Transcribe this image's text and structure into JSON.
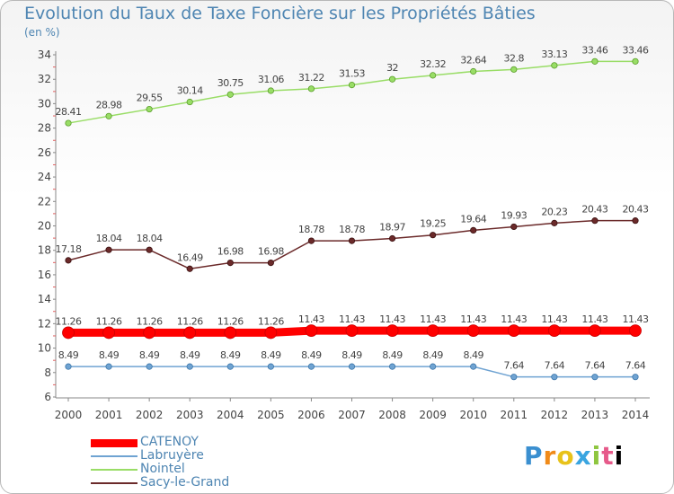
{
  "chart_data": {
    "type": "line",
    "title": "Evolution du Taux de Taxe Foncière sur les Propriétés Bâties",
    "unit_label": "(en %)",
    "x": [
      "2000",
      "2001",
      "2002",
      "2003",
      "2004",
      "2005",
      "2006",
      "2007",
      "2008",
      "2009",
      "2010",
      "2011",
      "2012",
      "2013",
      "2014"
    ],
    "ylim": [
      6,
      34
    ],
    "yticks": [
      6,
      8,
      10,
      12,
      14,
      16,
      18,
      20,
      22,
      24,
      26,
      28,
      30,
      32,
      34
    ],
    "grid": false,
    "legend_position": "bottom-left",
    "series": [
      {
        "name": "CATENOY",
        "color": "#ff0000",
        "values": [
          11.26,
          11.26,
          11.26,
          11.26,
          11.26,
          11.26,
          11.43,
          11.43,
          11.43,
          11.43,
          11.43,
          11.43,
          11.43,
          11.43,
          11.43
        ],
        "labels": [
          "11.26",
          "11.26",
          "11.26",
          "11.26",
          "11.26",
          "11.26",
          "11.43",
          "11.43",
          "11.43",
          "11.43",
          "11.43",
          "11.43",
          "11.43",
          "11.43",
          "11.43"
        ]
      },
      {
        "name": "Labruyère",
        "color": "#6fa3d2",
        "values": [
          8.49,
          8.49,
          8.49,
          8.49,
          8.49,
          8.49,
          8.49,
          8.49,
          8.49,
          8.49,
          8.49,
          7.64,
          7.64,
          7.64,
          7.64
        ],
        "labels": [
          "8.49",
          "8.49",
          "8.49",
          "8.49",
          "8.49",
          "8.49",
          "8.49",
          "8.49",
          "8.49",
          "8.49",
          "8.49",
          "7.64",
          "7.64",
          "7.64",
          "7.64"
        ]
      },
      {
        "name": "Nointel",
        "color": "#99dd66",
        "values": [
          28.41,
          28.98,
          29.55,
          30.14,
          30.75,
          31.06,
          31.22,
          31.53,
          32,
          32.32,
          32.64,
          32.8,
          33.13,
          33.46,
          33.46
        ],
        "labels": [
          "28.41",
          "28.98",
          "29.55",
          "30.14",
          "30.75",
          "31.06",
          "31.22",
          "31.53",
          "32",
          "32.32",
          "32.64",
          "32.8",
          "33.13",
          "33.46",
          "33.46"
        ]
      },
      {
        "name": "Sacy-le-Grand",
        "color": "#6b2a2a",
        "values": [
          17.18,
          18.04,
          18.04,
          16.49,
          16.98,
          16.98,
          18.78,
          18.78,
          18.97,
          19.25,
          19.64,
          19.93,
          20.23,
          20.43,
          20.43
        ],
        "labels": [
          "17.18",
          "18.04",
          "18.04",
          "16.49",
          "16.98",
          "16.98",
          "18.78",
          "18.78",
          "18.97",
          "19.25",
          "19.64",
          "19.93",
          "20.23",
          "20.43",
          "20.43"
        ]
      }
    ]
  },
  "logo": {
    "letters": [
      "P",
      "r",
      "o",
      "x",
      "i",
      "t",
      "i"
    ]
  }
}
